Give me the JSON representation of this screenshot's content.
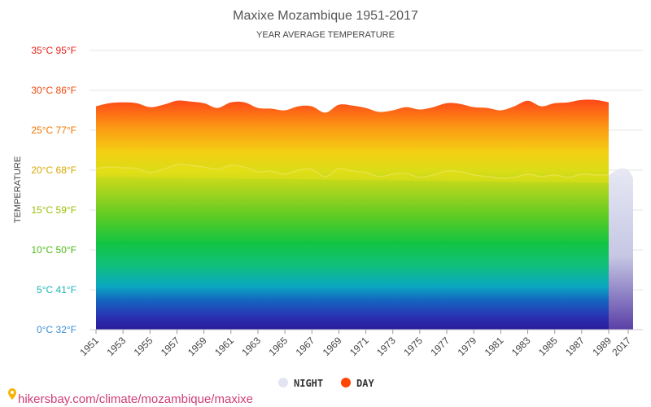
{
  "header": {
    "title": "Maxixe Mozambique 1951-2017",
    "subtitle": "YEAR AVERAGE TEMPERATURE"
  },
  "yaxis": {
    "title": "TEMPERATURE",
    "ticks": [
      {
        "value": 0,
        "label": "0°C 32°F",
        "color": "#3a8fd6"
      },
      {
        "value": 5,
        "label": "5°C 41°F",
        "color": "#1cb5b2"
      },
      {
        "value": 10,
        "label": "10°C 50°F",
        "color": "#4cbb17"
      },
      {
        "value": 15,
        "label": "15°C 59°F",
        "color": "#98bf0a"
      },
      {
        "value": 20,
        "label": "20°C 68°F",
        "color": "#d6a800"
      },
      {
        "value": 25,
        "label": "25°C 77°F",
        "color": "#f07700"
      },
      {
        "value": 30,
        "label": "30°C 86°F",
        "color": "#f04a10"
      },
      {
        "value": 35,
        "label": "35°C 95°F",
        "color": "#e8221c"
      }
    ]
  },
  "legend": {
    "night_label": "NIGHT",
    "day_label": "DAY",
    "night_color": "#e2e4f2",
    "day_color": "#ff4500"
  },
  "source": {
    "url_text": "hikersbay.com/climate/mozambique/maxixe",
    "pin_color": "#f4b400"
  },
  "chart_data": {
    "type": "area",
    "title": "Maxixe Mozambique 1951-2017",
    "subtitle": "YEAR AVERAGE TEMPERATURE",
    "ylabel": "TEMPERATURE",
    "ylim": [
      0,
      35
    ],
    "grid": true,
    "legend_position": "bottom",
    "x_tick_labels": [
      "1951",
      "1953",
      "1955",
      "1957",
      "1959",
      "1961",
      "1963",
      "1965",
      "1967",
      "1969",
      "1971",
      "1973",
      "1975",
      "1977",
      "1979",
      "1981",
      "1983",
      "1985",
      "1987",
      "1989",
      "2017"
    ],
    "x": [
      1951,
      1952,
      1953,
      1954,
      1955,
      1956,
      1957,
      1958,
      1959,
      1960,
      1961,
      1962,
      1963,
      1964,
      1965,
      1966,
      1967,
      1968,
      1969,
      1970,
      1971,
      1972,
      1973,
      1974,
      1975,
      1976,
      1977,
      1978,
      1979,
      1980,
      1981,
      1982,
      1983,
      1984,
      1985,
      1986,
      1987,
      1988,
      1989
    ],
    "series": [
      {
        "name": "DAY",
        "values": [
          28.0,
          28.4,
          28.5,
          28.4,
          27.9,
          28.2,
          28.7,
          28.6,
          28.4,
          27.8,
          28.5,
          28.5,
          27.8,
          27.7,
          27.5,
          28.0,
          28.0,
          27.2,
          28.2,
          28.1,
          27.8,
          27.3,
          27.5,
          27.9,
          27.6,
          27.9,
          28.4,
          28.3,
          27.9,
          27.8,
          27.5,
          28.0,
          28.7,
          28.0,
          28.4,
          28.5,
          28.8,
          28.8,
          28.5
        ]
      },
      {
        "name": "NIGHT",
        "values": [
          20.2,
          20.4,
          20.3,
          20.2,
          19.7,
          20.1,
          20.7,
          20.6,
          20.4,
          20.1,
          20.6,
          20.4,
          19.8,
          19.9,
          19.5,
          20.0,
          20.1,
          19.2,
          20.2,
          19.9,
          19.7,
          19.2,
          19.5,
          19.6,
          19.1,
          19.4,
          19.9,
          19.8,
          19.4,
          19.2,
          19.0,
          19.1,
          19.5,
          19.2,
          19.4,
          19.1,
          19.5,
          19.4,
          19.4
        ]
      }
    ],
    "night_only_segment": {
      "x": [
        1989,
        2017
      ],
      "values": [
        19.4,
        20.2
      ]
    }
  }
}
